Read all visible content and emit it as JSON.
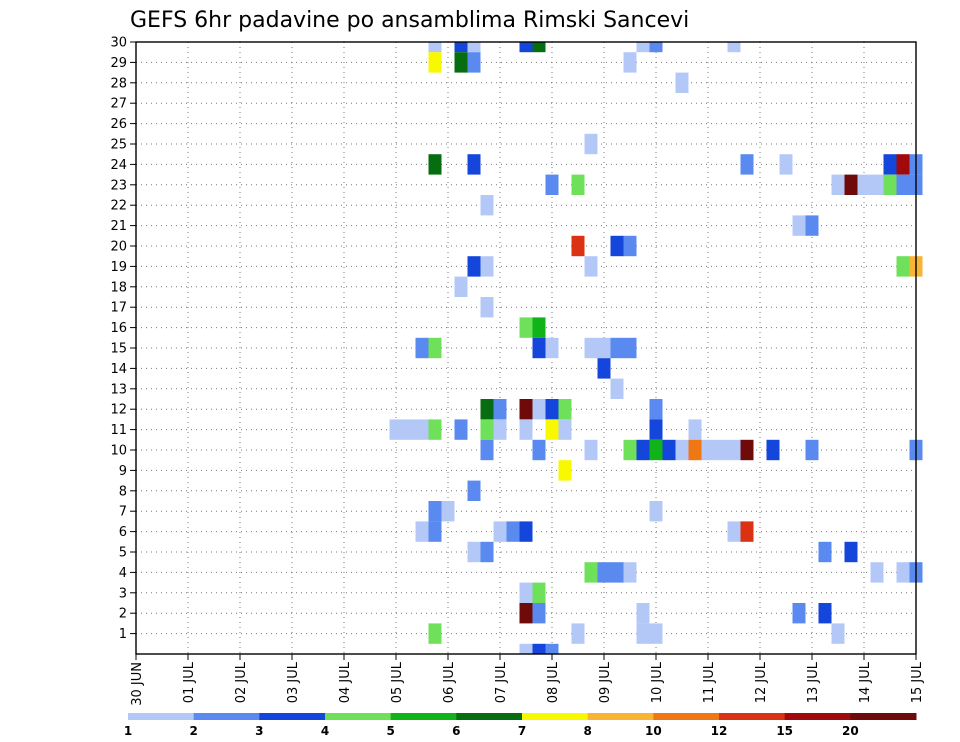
{
  "chart_data": {
    "type": "heatmap",
    "title": "GEFS 6hr padavine po ansamblima Rimski Sancevi",
    "xlabel": "",
    "ylabel": "",
    "x_ticks": [
      "30 JUN",
      "01 JUL",
      "02 JUL",
      "03 JUL",
      "04 JUL",
      "05 JUL",
      "06 JUL",
      "07 JUL",
      "08 JUL",
      "09 JUL",
      "10 JUL",
      "11 JUL",
      "12 JUL",
      "13 JUL",
      "14 JUL",
      "15 JUL"
    ],
    "y_ticks": [
      "1",
      "2",
      "3",
      "4",
      "5",
      "6",
      "7",
      "8",
      "9",
      "10",
      "11",
      "12",
      "13",
      "14",
      "15",
      "16",
      "17",
      "18",
      "19",
      "20",
      "21",
      "22",
      "23",
      "24",
      "25",
      "26",
      "27",
      "28",
      "29",
      "30"
    ],
    "x_range_days": [
      0,
      15
    ],
    "y_range": [
      0,
      30
    ],
    "time_step_hours": 6,
    "grid": true,
    "legend": {
      "placement": "bottom",
      "labels": [
        "1",
        "2",
        "3",
        "4",
        "5",
        "6",
        "7",
        "8",
        "10",
        "12",
        "15",
        "20"
      ],
      "colors": [
        "#b4c8f8",
        "#5a8af0",
        "#1446dc",
        "#6ee05a",
        "#10b418",
        "#066e10",
        "#f8f800",
        "#f8b432",
        "#f07814",
        "#dc3214",
        "#a00a0a",
        "#6e0a0a"
      ]
    },
    "cells": [
      {
        "member": 30,
        "time": "05 JUL 18",
        "value": 1
      },
      {
        "member": 30,
        "time": "06 JUL 06",
        "value": 3
      },
      {
        "member": 30,
        "time": "06 JUL 12",
        "value": 1
      },
      {
        "member": 30,
        "time": "07 JUL 12",
        "value": 3
      },
      {
        "member": 30,
        "time": "07 JUL 18",
        "value": 6
      },
      {
        "member": 30,
        "time": "09 JUL 18",
        "value": 1
      },
      {
        "member": 30,
        "time": "10 JUL 00",
        "value": 2
      },
      {
        "member": 30,
        "time": "11 JUL 12",
        "value": 1
      },
      {
        "member": 29,
        "time": "05 JUL 18",
        "value": 7
      },
      {
        "member": 29,
        "time": "06 JUL 06",
        "value": 6
      },
      {
        "member": 29,
        "time": "06 JUL 12",
        "value": 2
      },
      {
        "member": 29,
        "time": "09 JUL 12",
        "value": 1
      },
      {
        "member": 28,
        "time": "10 JUL 12",
        "value": 1
      },
      {
        "member": 25,
        "time": "08 JUL 18",
        "value": 1
      },
      {
        "member": 24,
        "time": "05 JUL 18",
        "value": 6
      },
      {
        "member": 24,
        "time": "06 JUL 12",
        "value": 3
      },
      {
        "member": 24,
        "time": "11 JUL 18",
        "value": 2
      },
      {
        "member": 24,
        "time": "12 JUL 12",
        "value": 1
      },
      {
        "member": 24,
        "time": "14 JUL 12",
        "value": 3
      },
      {
        "member": 24,
        "time": "14 JUL 18",
        "value": 15
      },
      {
        "member": 24,
        "time": "15 JUL 00",
        "value": 2
      },
      {
        "member": 23,
        "time": "08 JUL 00",
        "value": 2
      },
      {
        "member": 23,
        "time": "08 JUL 12",
        "value": 4
      },
      {
        "member": 23,
        "time": "13 JUL 12",
        "value": 1
      },
      {
        "member": 23,
        "time": "13 JUL 18",
        "value": 20
      },
      {
        "member": 23,
        "time": "14 JUL 00",
        "value": 1
      },
      {
        "member": 23,
        "time": "14 JUL 06",
        "value": 1
      },
      {
        "member": 23,
        "time": "14 JUL 12",
        "value": 4
      },
      {
        "member": 23,
        "time": "14 JUL 18",
        "value": 2
      },
      {
        "member": 23,
        "time": "15 JUL 00",
        "value": 2
      },
      {
        "member": 22,
        "time": "06 JUL 18",
        "value": 1
      },
      {
        "member": 21,
        "time": "12 JUL 18",
        "value": 1
      },
      {
        "member": 21,
        "time": "13 JUL 00",
        "value": 2
      },
      {
        "member": 20,
        "time": "08 JUL 12",
        "value": 12
      },
      {
        "member": 20,
        "time": "09 JUL 06",
        "value": 3
      },
      {
        "member": 20,
        "time": "09 JUL 12",
        "value": 2
      },
      {
        "member": 19,
        "time": "06 JUL 12",
        "value": 3
      },
      {
        "member": 19,
        "time": "06 JUL 18",
        "value": 1
      },
      {
        "member": 19,
        "time": "08 JUL 18",
        "value": 1
      },
      {
        "member": 19,
        "time": "14 JUL 18",
        "value": 4
      },
      {
        "member": 19,
        "time": "15 JUL 00",
        "value": 8
      },
      {
        "member": 18,
        "time": "06 JUL 06",
        "value": 1
      },
      {
        "member": 17,
        "time": "06 JUL 18",
        "value": 1
      },
      {
        "member": 16,
        "time": "07 JUL 12",
        "value": 4
      },
      {
        "member": 16,
        "time": "07 JUL 18",
        "value": 5
      },
      {
        "member": 15,
        "time": "05 JUL 12",
        "value": 2
      },
      {
        "member": 15,
        "time": "05 JUL 18",
        "value": 4
      },
      {
        "member": 15,
        "time": "07 JUL 18",
        "value": 3
      },
      {
        "member": 15,
        "time": "08 JUL 00",
        "value": 1
      },
      {
        "member": 15,
        "time": "08 JUL 18",
        "value": 1
      },
      {
        "member": 15,
        "time": "09 JUL 00",
        "value": 1
      },
      {
        "member": 15,
        "time": "09 JUL 06",
        "value": 2
      },
      {
        "member": 15,
        "time": "09 JUL 12",
        "value": 2
      },
      {
        "member": 14,
        "time": "09 JUL 00",
        "value": 3
      },
      {
        "member": 13,
        "time": "09 JUL 06",
        "value": 1
      },
      {
        "member": 12,
        "time": "06 JUL 18",
        "value": 6
      },
      {
        "member": 12,
        "time": "07 JUL 00",
        "value": 2
      },
      {
        "member": 12,
        "time": "07 JUL 12",
        "value": 20
      },
      {
        "member": 12,
        "time": "07 JUL 18",
        "value": 1
      },
      {
        "member": 12,
        "time": "08 JUL 00",
        "value": 3
      },
      {
        "member": 12,
        "time": "08 JUL 06",
        "value": 4
      },
      {
        "member": 12,
        "time": "10 JUL 00",
        "value": 2
      },
      {
        "member": 11,
        "time": "05 JUL 00",
        "value": 1
      },
      {
        "member": 11,
        "time": "05 JUL 06",
        "value": 1
      },
      {
        "member": 11,
        "time": "05 JUL 12",
        "value": 1
      },
      {
        "member": 11,
        "time": "05 JUL 18",
        "value": 4
      },
      {
        "member": 11,
        "time": "06 JUL 06",
        "value": 2
      },
      {
        "member": 11,
        "time": "06 JUL 18",
        "value": 4
      },
      {
        "member": 11,
        "time": "07 JUL 00",
        "value": 1
      },
      {
        "member": 11,
        "time": "07 JUL 12",
        "value": 1
      },
      {
        "member": 11,
        "time": "08 JUL 00",
        "value": 7
      },
      {
        "member": 11,
        "time": "08 JUL 06",
        "value": 1
      },
      {
        "member": 11,
        "time": "10 JUL 00",
        "value": 3
      },
      {
        "member": 11,
        "time": "10 JUL 18",
        "value": 1
      },
      {
        "member": 10,
        "time": "06 JUL 18",
        "value": 2
      },
      {
        "member": 10,
        "time": "07 JUL 18",
        "value": 2
      },
      {
        "member": 10,
        "time": "08 JUL 18",
        "value": 1
      },
      {
        "member": 10,
        "time": "09 JUL 12",
        "value": 4
      },
      {
        "member": 10,
        "time": "09 JUL 18",
        "value": 3
      },
      {
        "member": 10,
        "time": "10 JUL 00",
        "value": 5
      },
      {
        "member": 10,
        "time": "10 JUL 06",
        "value": 3
      },
      {
        "member": 10,
        "time": "10 JUL 12",
        "value": 1
      },
      {
        "member": 10,
        "time": "10 JUL 18",
        "value": 10
      },
      {
        "member": 10,
        "time": "11 JUL 00",
        "value": 1
      },
      {
        "member": 10,
        "time": "11 JUL 06",
        "value": 1
      },
      {
        "member": 10,
        "time": "11 JUL 12",
        "value": 1
      },
      {
        "member": 10,
        "time": "11 JUL 18",
        "value": 20
      },
      {
        "member": 10,
        "time": "12 JUL 06",
        "value": 3
      },
      {
        "member": 10,
        "time": "13 JUL 00",
        "value": 2
      },
      {
        "member": 10,
        "time": "15 JUL 00",
        "value": 2
      },
      {
        "member": 9,
        "time": "08 JUL 06",
        "value": 7
      },
      {
        "member": 8,
        "time": "06 JUL 12",
        "value": 2
      },
      {
        "member": 7,
        "time": "05 JUL 18",
        "value": 2
      },
      {
        "member": 7,
        "time": "06 JUL 00",
        "value": 1
      },
      {
        "member": 7,
        "time": "10 JUL 00",
        "value": 1
      },
      {
        "member": 6,
        "time": "05 JUL 12",
        "value": 1
      },
      {
        "member": 6,
        "time": "05 JUL 18",
        "value": 2
      },
      {
        "member": 6,
        "time": "07 JUL 00",
        "value": 1
      },
      {
        "member": 6,
        "time": "07 JUL 06",
        "value": 2
      },
      {
        "member": 6,
        "time": "07 JUL 12",
        "value": 3
      },
      {
        "member": 6,
        "time": "11 JUL 12",
        "value": 1
      },
      {
        "member": 6,
        "time": "11 JUL 18",
        "value": 12
      },
      {
        "member": 5,
        "time": "06 JUL 12",
        "value": 1
      },
      {
        "member": 5,
        "time": "06 JUL 18",
        "value": 2
      },
      {
        "member": 5,
        "time": "13 JUL 06",
        "value": 2
      },
      {
        "member": 5,
        "time": "13 JUL 18",
        "value": 3
      },
      {
        "member": 4,
        "time": "08 JUL 18",
        "value": 4
      },
      {
        "member": 4,
        "time": "09 JUL 00",
        "value": 2
      },
      {
        "member": 4,
        "time": "09 JUL 06",
        "value": 2
      },
      {
        "member": 4,
        "time": "09 JUL 12",
        "value": 1
      },
      {
        "member": 4,
        "time": "14 JUL 06",
        "value": 1
      },
      {
        "member": 4,
        "time": "14 JUL 18",
        "value": 1
      },
      {
        "member": 4,
        "time": "15 JUL 00",
        "value": 2
      },
      {
        "member": 3,
        "time": "07 JUL 12",
        "value": 1
      },
      {
        "member": 3,
        "time": "07 JUL 18",
        "value": 4
      },
      {
        "member": 2,
        "time": "07 JUL 12",
        "value": 20
      },
      {
        "member": 2,
        "time": "07 JUL 18",
        "value": 2
      },
      {
        "member": 2,
        "time": "09 JUL 18",
        "value": 1
      },
      {
        "member": 2,
        "time": "12 JUL 18",
        "value": 2
      },
      {
        "member": 2,
        "time": "13 JUL 06",
        "value": 3
      },
      {
        "member": 1,
        "time": "05 JUL 18",
        "value": 4
      },
      {
        "member": 1,
        "time": "08 JUL 12",
        "value": 1
      },
      {
        "member": 1,
        "time": "09 JUL 18",
        "value": 1
      },
      {
        "member": 1,
        "time": "10 JUL 00",
        "value": 1
      },
      {
        "member": 1,
        "time": "13 JUL 12",
        "value": 1
      },
      {
        "member": 0,
        "time": "07 JUL 12",
        "value": 1
      },
      {
        "member": 0,
        "time": "07 JUL 18",
        "value": 3
      },
      {
        "member": 0,
        "time": "08 JUL 00",
        "value": 2
      }
    ]
  }
}
